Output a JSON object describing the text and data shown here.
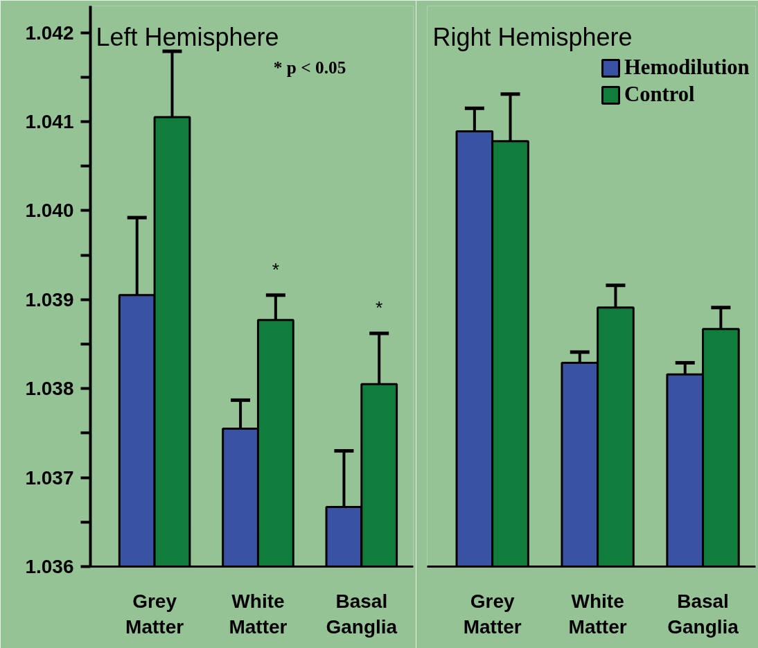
{
  "chart_data": [
    {
      "type": "bar",
      "title": "Left  Hemisphere",
      "categories": [
        "Grey Matter",
        "White Matter",
        "Basal Ganglia"
      ],
      "series": [
        {
          "color": "#3a52a4",
          "values": [
            1.03905,
            1.03755,
            1.03667
          ],
          "errors": [
            [
              1.03905,
              1.03992
            ],
            [
              1.03755,
              1.03787
            ],
            [
              1.03667,
              1.0373
            ]
          ]
        },
        {
          "color": "#117d3c",
          "values": [
            1.04105,
            1.03877,
            1.03805
          ],
          "errors": [
            [
              1.04105,
              1.04179
            ],
            [
              1.03877,
              1.03905
            ],
            [
              1.03805,
              1.03862
            ]
          ]
        }
      ],
      "ylim": [
        1.036,
        1.0423
      ],
      "yticks": [
        1.036,
        {
          "value": 1.0365,
          "label": null
        },
        1.037,
        {
          "value": 1.0375,
          "label": null
        },
        1.038,
        {
          "value": 1.0385,
          "label": null
        },
        1.039,
        {
          "value": 1.0395,
          "label": null
        },
        {
          "value": 1.04,
          "label": "1.040"
        },
        {
          "value": 1.0405,
          "label": null
        },
        1.041,
        {
          "value": 1.0415,
          "label": null
        },
        1.042
      ],
      "annotations": [
        "*    p < 0.05",
        "*",
        "*"
      ],
      "grid": false,
      "legend": false
    },
    {
      "type": "bar",
      "title": "Right  Hemisphere",
      "categories": [
        "Grey Matter",
        "White Matter",
        "Basal Ganglia"
      ],
      "series": [
        {
          "name": "Hemodilution",
          "color": "#3a52a4",
          "values": [
            1.04089,
            1.03829,
            1.03816
          ],
          "errors": [
            [
              1.04089,
              1.04115
            ],
            [
              1.03829,
              1.03841
            ],
            [
              1.03816,
              1.03829
            ]
          ]
        },
        {
          "name": "Control",
          "color": "#117d3c",
          "values": [
            1.04078,
            1.03891,
            1.03867
          ],
          "errors": [
            [
              1.04078,
              1.04131
            ],
            [
              1.03891,
              1.03916
            ],
            [
              1.03867,
              1.03891
            ]
          ]
        }
      ],
      "ylim": [
        1.036,
        1.0423
      ],
      "tick_labels": "x",
      "grid": false,
      "legend": "top right"
    }
  ]
}
